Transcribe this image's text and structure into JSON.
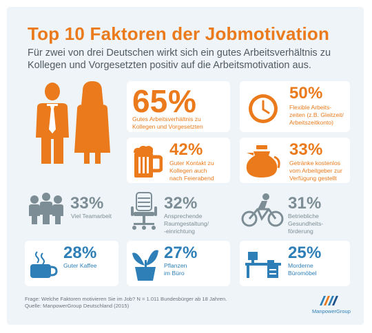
{
  "title": "Top 10 Faktoren der Jobmotivation",
  "subtitle": "Für zwei von drei Deutschen wirkt sich ein gutes Arbeitsverhältnis zu Kollegen und Vorgesetzten positiv auf die Arbeitsmotivation aus.",
  "colors": {
    "orange": "#ea7a1b",
    "blue": "#2e7fb8",
    "gray": "#7d8d95",
    "green": "#7aae43",
    "background": "#eef4f7"
  },
  "chart_data": {
    "type": "table",
    "title": "Top 10 Faktoren der Jobmotivation",
    "unit": "%",
    "items": [
      {
        "value": 65,
        "label": "Gutes Arbeitsverhältnis zu\nKollegen und Vorgesetzten",
        "icon": "people-icon"
      },
      {
        "value": 50,
        "label": "Flexible Arbeits-\nzeiten (z.B. Gleitzeit/\nArbeitszeitkonto)",
        "icon": "clock-icon"
      },
      {
        "value": 42,
        "label": "Guter Kontakt zu\nKollegen auch\nnach Feierabend",
        "icon": "beer-icon"
      },
      {
        "value": 33,
        "label": "Getränke kostenlos\nvom Arbeitgeber zur\nVerfügung gestellt",
        "icon": "carafe-icon"
      },
      {
        "value": 33,
        "label": "Viel Teamarbeit",
        "icon": "team-icon"
      },
      {
        "value": 32,
        "label": "Ansprechende\nRaumgestaltung/\n-einrichtung",
        "icon": "office-chair-icon"
      },
      {
        "value": 31,
        "label": "Betriebliche\nGesundheits-\nförderung",
        "icon": "bicycle-icon"
      },
      {
        "value": 28,
        "label": "Guter Kaffee",
        "icon": "coffee-cup-icon"
      },
      {
        "value": 27,
        "label": "Pflanzen\nim Büro",
        "icon": "plant-icon"
      },
      {
        "value": 25,
        "label": "Morderne\nBüromöbel",
        "icon": "desk-icon"
      }
    ]
  },
  "footer": "Frage: Welche Faktoren motivieren Sie im Job? N = 1.011 Bundesbürger ab 18 Jahren.\nQuelle: ManpowerGroup Deutschland (2015)",
  "brand": "ManpowerGroup"
}
